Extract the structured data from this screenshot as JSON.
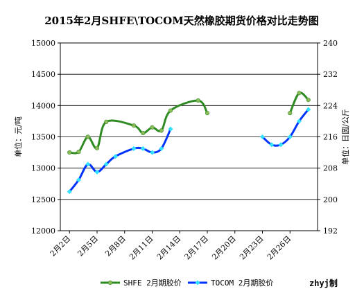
{
  "chart_data": {
    "type": "line",
    "title": "2015年2月SHFE\\TOCOM天然橡胶期货价格对比走势图",
    "ylabel": "单位：元/吨",
    "y2label": "单位：日圆/公斤",
    "ylim": [
      12000,
      15000
    ],
    "yticks": [
      "12000",
      "12500",
      "13000",
      "13500",
      "14000",
      "14500",
      "15000"
    ],
    "y2lim": [
      192,
      240
    ],
    "y2ticks": [
      "192",
      "200",
      "208",
      "216",
      "224",
      "232",
      "240"
    ],
    "xlim": [
      1,
      29
    ],
    "xticks": [
      {
        "x": 2,
        "label": "2月2日"
      },
      {
        "x": 5,
        "label": "2月5日"
      },
      {
        "x": 8,
        "label": "2月8日"
      },
      {
        "x": 11,
        "label": "2月11日"
      },
      {
        "x": 14,
        "label": "2月14日"
      },
      {
        "x": 17,
        "label": "2月17日"
      },
      {
        "x": 20,
        "label": "2月20日"
      },
      {
        "x": 23,
        "label": "2月23日"
      },
      {
        "x": 26,
        "label": "2月26日"
      }
    ],
    "grid": "horizontal",
    "legend_position": "bottom",
    "credit": "zhyj制",
    "series": [
      {
        "name": "SHFE 2月期胶价",
        "axis": "left",
        "color": "#2e8b22",
        "marker_color": "#8fbc5a",
        "segments": [
          [
            [
              2,
              13250
            ],
            [
              3,
              13260
            ],
            [
              4,
              13500
            ],
            [
              5,
              13320
            ],
            [
              6,
              13740
            ],
            [
              9,
              13680
            ],
            [
              10,
              13560
            ],
            [
              11,
              13650
            ],
            [
              12,
              13600
            ],
            [
              13,
              13920
            ],
            [
              16,
              14080
            ],
            [
              17,
              13880
            ]
          ],
          [
            [
              26,
              13880
            ],
            [
              27,
              14200
            ],
            [
              28,
              14090
            ]
          ]
        ]
      },
      {
        "name": "TOCOM 2月期胶价",
        "axis": "right",
        "color": "#0033ff",
        "marker_color": "#33e0ff",
        "segments": [
          [
            [
              2,
              202
            ],
            [
              3,
              205
            ],
            [
              4,
              209
            ],
            [
              5,
              207
            ],
            [
              6,
              209
            ],
            [
              7,
              211
            ],
            [
              9,
              213
            ],
            [
              10,
              213
            ],
            [
              11,
              212
            ],
            [
              12,
              213
            ],
            [
              13,
              218
            ]
          ],
          [
            [
              23,
              216
            ],
            [
              24,
              214
            ],
            [
              25,
              214
            ],
            [
              26,
              216
            ],
            [
              27,
              220
            ],
            [
              28,
              223
            ]
          ]
        ]
      }
    ]
  }
}
